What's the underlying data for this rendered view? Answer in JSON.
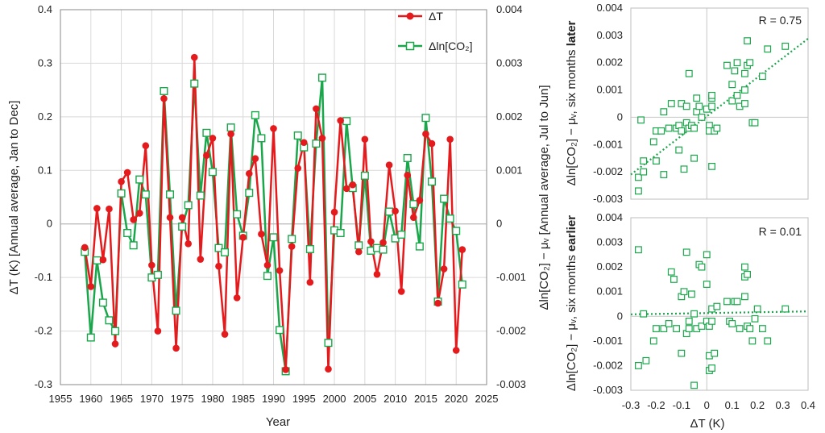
{
  "colors": {
    "red": "#e41a1c",
    "green": "#1aa64b",
    "grid": "#d9d9d9",
    "axis": "#888888"
  },
  "chart_data": [
    {
      "type": "line",
      "xlabel": "Year",
      "ylabel_left": "ΔT (K) [Annual average, Jan to Dec]",
      "ylabel_right": "Δln[CO₂] − μᵥ [Annual average, Jul to Jun]",
      "xlim": [
        1955,
        2025
      ],
      "ylim_left": [
        -0.3,
        0.4
      ],
      "ylim_right": [
        -0.003,
        0.004
      ],
      "xticks": [
        "1955",
        "1960",
        "1965",
        "1970",
        "1975",
        "1980",
        "1985",
        "1990",
        "1995",
        "2000",
        "2005",
        "2010",
        "2015",
        "2020",
        "2025"
      ],
      "yticks_left": [
        "-0.3",
        "-0.2",
        "-0.1",
        "0",
        "0.1",
        "0.2",
        "0.3",
        "0.4"
      ],
      "yticks_right": [
        "-0.003",
        "-0.002",
        "-0.001",
        "0",
        "0.001",
        "0.002",
        "0.003",
        "0.004"
      ],
      "grid": true,
      "legend_position": "top-right",
      "series": [
        {
          "name": "ΔT",
          "axis": "left",
          "color": "#e41a1c",
          "marker": "filled-circle",
          "x": [
            1959,
            1960,
            1961,
            1962,
            1963,
            1964,
            1965,
            1966,
            1967,
            1968,
            1969,
            1970,
            1971,
            1972,
            1973,
            1974,
            1975,
            1976,
            1977,
            1978,
            1979,
            1980,
            1981,
            1982,
            1983,
            1984,
            1985,
            1986,
            1987,
            1988,
            1989,
            1990,
            1991,
            1992,
            1993,
            1994,
            1995,
            1996,
            1997,
            1998,
            1999,
            2000,
            2001,
            2002,
            2003,
            2004,
            2005,
            2006,
            2007,
            2008,
            2009,
            2010,
            2011,
            2012,
            2013,
            2014,
            2015,
            2016,
            2017,
            2018,
            2019,
            2020,
            2021
          ],
          "y": [
            -0.044,
            -0.117,
            0.029,
            -0.067,
            0.028,
            -0.224,
            0.079,
            0.096,
            0.008,
            0.02,
            0.146,
            -0.077,
            -0.2,
            0.234,
            0.012,
            -0.232,
            0.012,
            -0.037,
            0.311,
            -0.066,
            0.128,
            0.16,
            -0.079,
            -0.206,
            0.168,
            -0.138,
            -0.025,
            0.094,
            0.122,
            -0.019,
            -0.077,
            0.178,
            -0.087,
            -0.272,
            -0.042,
            0.104,
            0.152,
            -0.109,
            0.215,
            0.16,
            -0.271,
            0.022,
            0.193,
            0.066,
            0.073,
            -0.052,
            0.158,
            -0.033,
            -0.094,
            -0.035,
            0.11,
            0.024,
            -0.126,
            0.091,
            0.012,
            0.044,
            0.168,
            0.15,
            -0.148,
            -0.084,
            0.158,
            -0.236,
            -0.048
          ]
        },
        {
          "name": "Δln[CO₂]",
          "axis": "right",
          "color": "#1aa64b",
          "marker": "open-square",
          "x": [
            1959,
            1960,
            1961,
            1962,
            1963,
            1964,
            1965,
            1966,
            1967,
            1968,
            1969,
            1970,
            1971,
            1972,
            1973,
            1974,
            1975,
            1976,
            1977,
            1978,
            1979,
            1980,
            1981,
            1982,
            1983,
            1984,
            1985,
            1986,
            1987,
            1988,
            1989,
            1990,
            1991,
            1992,
            1993,
            1994,
            1995,
            1996,
            1997,
            1998,
            1999,
            2000,
            2001,
            2002,
            2003,
            2004,
            2005,
            2006,
            2007,
            2008,
            2009,
            2010,
            2011,
            2012,
            2013,
            2014,
            2015,
            2016,
            2017,
            2018,
            2019,
            2020,
            2021
          ],
          "y": [
            -0.00052,
            -0.00212,
            -0.00068,
            -0.00147,
            -0.0018,
            -0.002,
            0.00057,
            -0.00017,
            -0.0004,
            0.00083,
            0.00055,
            -0.001,
            -0.00095,
            0.00248,
            0.00055,
            -0.00162,
            -5e-05,
            0.00035,
            0.00262,
            0.00053,
            0.0017,
            0.00097,
            -0.00045,
            -0.00053,
            0.0018,
            0.00018,
            -0.00022,
            0.00058,
            0.00203,
            0.0016,
            -0.00097,
            -0.00025,
            -0.00198,
            -0.00275,
            -0.00028,
            0.00165,
            0.00143,
            -0.00047,
            0.0015,
            0.00273,
            -0.00222,
            -0.00012,
            -0.00017,
            0.00192,
            0.00067,
            -0.0004,
            0.0009,
            -0.0005,
            -0.00045,
            -0.00048,
            0.00023,
            -0.00027,
            -0.0002,
            0.00123,
            0.00037,
            -0.00042,
            0.00198,
            0.00079,
            -0.00145,
            0.00047,
            0.0001,
            -0.00013,
            -0.00113
          ]
        }
      ]
    },
    {
      "type": "scatter",
      "title": "",
      "xlabel": "",
      "ylabel": "Δln[CO₂] − μᵥ, six months later",
      "ylabel_plain": "Δln[CO₂] − μᵥ, six months ",
      "ylabel_bold": "later",
      "xlim": [
        -0.3,
        0.4
      ],
      "ylim": [
        -0.003,
        0.004
      ],
      "yticks": [
        "-0.003",
        "-0.002",
        "-0.001",
        "0",
        "0.001",
        "0.002",
        "0.003",
        "0.004"
      ],
      "annotation": "R = 0.75",
      "trendline": {
        "style": "dotted",
        "x": [
          -0.3,
          0.4
        ],
        "y": [
          -0.0021,
          0.00288
        ]
      },
      "series": [
        {
          "marker": "open-square",
          "color": "#1aa64b",
          "x": [
            -0.27,
            -0.27,
            -0.26,
            -0.25,
            -0.25,
            -0.21,
            -0.2,
            -0.2,
            -0.18,
            -0.17,
            -0.17,
            -0.15,
            -0.14,
            -0.12,
            -0.11,
            -0.11,
            -0.1,
            -0.1,
            -0.09,
            -0.08,
            -0.08,
            -0.07,
            -0.07,
            -0.06,
            -0.05,
            -0.05,
            -0.04,
            -0.04,
            -0.03,
            -0.02,
            0,
            0.01,
            0.01,
            0.02,
            0.02,
            0.02,
            0.02,
            0.03,
            0.04,
            0.08,
            0.1,
            0.1,
            0.11,
            0.12,
            0.12,
            0.13,
            0.15,
            0.15,
            0.15,
            0.16,
            0.16,
            0.17,
            0.18,
            0.19,
            0.22,
            0.24,
            0.31
          ],
          "y": [
            -0.0027,
            -0.0022,
            -0.0001,
            -0.0016,
            -0.002,
            -0.0009,
            -0.0005,
            -0.0016,
            -0.0005,
            0.0002,
            -0.0021,
            -0.0004,
            0.0005,
            -0.0004,
            -0.0003,
            -0.0012,
            -0.0005,
            0.0005,
            -0.0019,
            -0.0002,
            0.0004,
            -0.0004,
            0.0016,
            -0.0003,
            -0.0015,
            -0.0004,
            0.0007,
            0.0002,
            0.0004,
            0,
            0.0003,
            -0.0003,
            -0.0005,
            0.0007,
            0.0004,
            0.0008,
            -0.0018,
            -0.0005,
            -0.0004,
            0.0019,
            0.0006,
            0.0012,
            0.0017,
            0.002,
            0.0008,
            0.0004,
            0.0016,
            0.001,
            0.0005,
            0.0028,
            0.0019,
            0.002,
            -0.0002,
            -0.0002,
            0.0015,
            0.0025,
            0.0026
          ]
        }
      ]
    },
    {
      "type": "scatter",
      "title": "",
      "xlabel": "ΔT (K)",
      "ylabel": "Δln[CO₂] − μᵥ, six months earlier",
      "ylabel_plain": "Δln[CO₂] − μᵥ, six months ",
      "ylabel_bold": "earlier",
      "xlim": [
        -0.3,
        0.4
      ],
      "ylim": [
        -0.003,
        0.004
      ],
      "xticks": [
        "-0.3",
        "-0.2",
        "-0.1",
        "0",
        "0.1",
        "0.2",
        "0.3",
        "0.4"
      ],
      "yticks": [
        "-0.003",
        "-0.002",
        "-0.001",
        "0",
        "0.001",
        "0.002",
        "0.003",
        "0.004"
      ],
      "annotation": "R = 0.01",
      "trendline": {
        "style": "dotted",
        "x": [
          -0.3,
          0.4
        ],
        "y": [
          8e-05,
          0.0002
        ]
      },
      "series": [
        {
          "marker": "open-square",
          "color": "#1aa64b",
          "x": [
            -0.27,
            -0.27,
            -0.25,
            -0.24,
            -0.21,
            -0.2,
            -0.17,
            -0.15,
            -0.14,
            -0.13,
            -0.12,
            -0.1,
            -0.1,
            -0.09,
            -0.08,
            -0.08,
            -0.07,
            -0.07,
            -0.06,
            -0.05,
            -0.05,
            -0.04,
            -0.03,
            -0.02,
            -0.02,
            0,
            0,
            0,
            0.01,
            0.01,
            0.01,
            0.02,
            0.02,
            0.02,
            0.03,
            0.04,
            0.08,
            0.09,
            0.1,
            0.11,
            0.12,
            0.13,
            0.15,
            0.15,
            0.15,
            0.16,
            0.16,
            0.17,
            0.18,
            0.19,
            0.2,
            0.22,
            0.24,
            0.31
          ],
          "y": [
            0.0027,
            -0.002,
            0.0001,
            -0.0018,
            -0.001,
            -0.0005,
            -0.0005,
            -0.0003,
            0.0018,
            0.0015,
            -0.0005,
            0.0008,
            -0.0015,
            0.001,
            0.0026,
            -0.0007,
            -0.0002,
            -0.0005,
            0.0009,
            0.0001,
            -0.0028,
            -0.0005,
            0.0021,
            -0.0004,
            0.002,
            -0.0002,
            0.0013,
            0.0025,
            -0.0004,
            -0.0016,
            -0.0022,
            -0.0002,
            0.0003,
            -0.0021,
            -0.0015,
            0.0004,
            0.0006,
            -0.0002,
            -0.0003,
            0.0006,
            0.0006,
            -0.0005,
            0.002,
            0.0016,
            0.0008,
            0.0017,
            -0.0004,
            -0.0005,
            -0.001,
            -0.0001,
            0.0003,
            -0.0005,
            -0.001,
            0.0003
          ]
        }
      ]
    }
  ]
}
